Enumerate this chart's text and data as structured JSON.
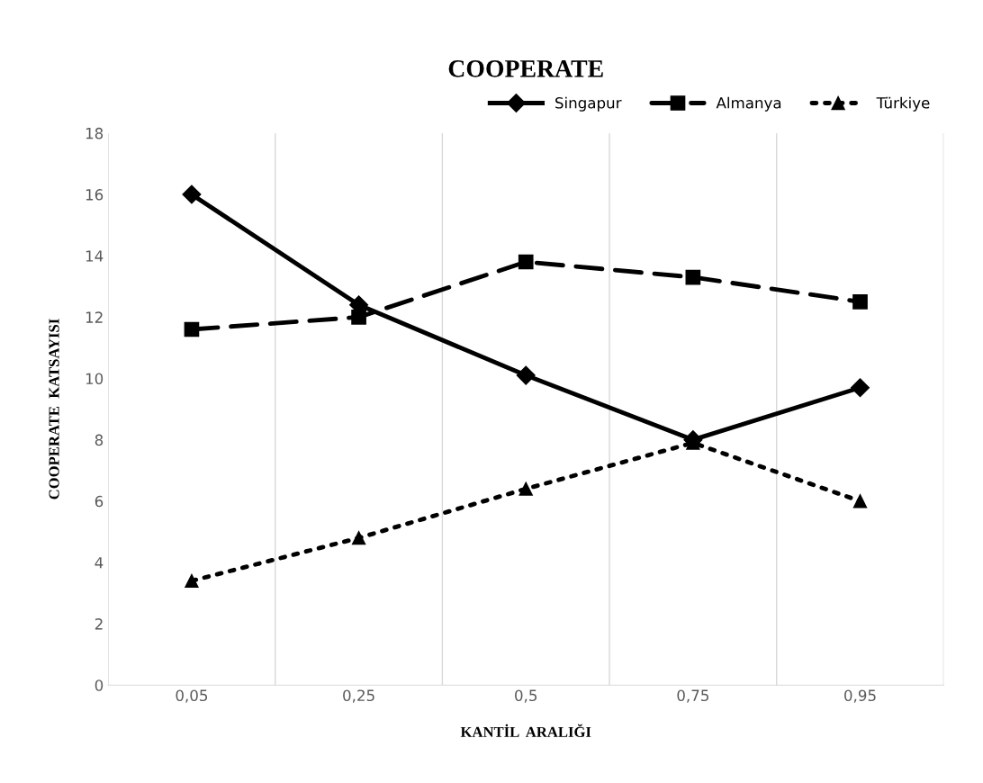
{
  "chart_data": {
    "type": "line",
    "title": "COOPERATE",
    "xlabel": "KANTİL  ARALIĞI",
    "ylabel": "COOPERATE  KATSAYISI",
    "categories": [
      "0,05",
      "0,25",
      "0,5",
      "0,75",
      "0,95"
    ],
    "series": [
      {
        "name": "Singapur",
        "color": "#000000",
        "marker": "diamond",
        "line_style": "solid",
        "values": [
          16.0,
          12.4,
          10.1,
          8.0,
          9.7
        ]
      },
      {
        "name": "Almanya",
        "color": "#000000",
        "marker": "square",
        "line_style": "dashed",
        "values": [
          11.6,
          12.0,
          13.8,
          13.3,
          12.5
        ]
      },
      {
        "name": "Türkiye",
        "color": "#000000",
        "marker": "triangle",
        "line_style": "dotted",
        "values": [
          3.4,
          4.8,
          6.4,
          7.9,
          6.0
        ]
      }
    ],
    "ylim": [
      0,
      18
    ],
    "yticks": [
      0,
      2,
      4,
      6,
      8,
      10,
      12,
      14,
      16,
      18
    ],
    "grid": "x",
    "legend": "top right"
  }
}
